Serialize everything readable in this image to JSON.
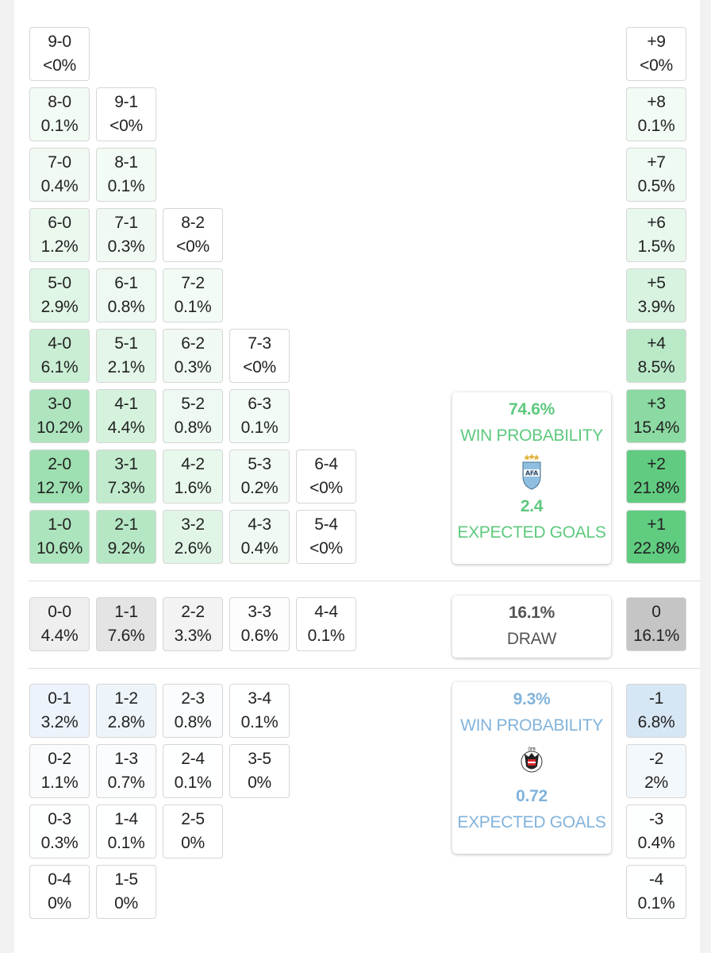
{
  "chart_data": {
    "type": "table",
    "home": {
      "win_probability": "74.6%",
      "win_label": "WIN PROBABILITY",
      "expected_goals": "2.4",
      "xg_label": "EXPECTED GOALS",
      "crest_icon": "afa-crest-icon",
      "color": "#5ec97e"
    },
    "away": {
      "win_probability": "9.3%",
      "win_label": "WIN PROBABILITY",
      "expected_goals": "0.72",
      "xg_label": "EXPECTED GOALS",
      "crest_icon": "ofb-crest-icon",
      "color": "#82b3db"
    },
    "draw": {
      "probability": "16.1%",
      "label": "DRAW"
    },
    "home_wins": [
      [
        "9-0",
        "<0%",
        "8-0",
        "0.1%",
        "9-1",
        "<0%"
      ],
      []
    ],
    "home_win_columns": [
      [
        {
          "score": "1-0",
          "prob": "10.6%",
          "p": 10.6
        },
        {
          "score": "2-0",
          "prob": "12.7%",
          "p": 12.7
        },
        {
          "score": "3-0",
          "prob": "10.2%",
          "p": 10.2
        },
        {
          "score": "4-0",
          "prob": "6.1%",
          "p": 6.1
        },
        {
          "score": "5-0",
          "prob": "2.9%",
          "p": 2.9
        },
        {
          "score": "6-0",
          "prob": "1.2%",
          "p": 1.2
        },
        {
          "score": "7-0",
          "prob": "0.4%",
          "p": 0.4
        },
        {
          "score": "8-0",
          "prob": "0.1%",
          "p": 0.1
        },
        {
          "score": "9-0",
          "prob": "<0%",
          "p": 0
        }
      ],
      [
        {
          "score": "2-1",
          "prob": "9.2%",
          "p": 9.2
        },
        {
          "score": "3-1",
          "prob": "7.3%",
          "p": 7.3
        },
        {
          "score": "4-1",
          "prob": "4.4%",
          "p": 4.4
        },
        {
          "score": "5-1",
          "prob": "2.1%",
          "p": 2.1
        },
        {
          "score": "6-1",
          "prob": "0.8%",
          "p": 0.8
        },
        {
          "score": "7-1",
          "prob": "0.3%",
          "p": 0.3
        },
        {
          "score": "8-1",
          "prob": "0.1%",
          "p": 0.1
        },
        {
          "score": "9-1",
          "prob": "<0%",
          "p": 0
        }
      ],
      [
        {
          "score": "3-2",
          "prob": "2.6%",
          "p": 2.6
        },
        {
          "score": "4-2",
          "prob": "1.6%",
          "p": 1.6
        },
        {
          "score": "5-2",
          "prob": "0.8%",
          "p": 0.8
        },
        {
          "score": "6-2",
          "prob": "0.3%",
          "p": 0.3
        },
        {
          "score": "7-2",
          "prob": "0.1%",
          "p": 0.1
        },
        {
          "score": "8-2",
          "prob": "<0%",
          "p": 0
        }
      ],
      [
        {
          "score": "4-3",
          "prob": "0.4%",
          "p": 0.4
        },
        {
          "score": "5-3",
          "prob": "0.2%",
          "p": 0.2
        },
        {
          "score": "6-3",
          "prob": "0.1%",
          "p": 0.1
        },
        {
          "score": "7-3",
          "prob": "<0%",
          "p": 0
        }
      ],
      [
        {
          "score": "5-4",
          "prob": "<0%",
          "p": 0
        },
        {
          "score": "6-4",
          "prob": "<0%",
          "p": 0
        }
      ]
    ],
    "draws": [
      {
        "score": "0-0",
        "prob": "4.4%",
        "p": 4.4
      },
      {
        "score": "1-1",
        "prob": "7.6%",
        "p": 7.6
      },
      {
        "score": "2-2",
        "prob": "3.3%",
        "p": 3.3
      },
      {
        "score": "3-3",
        "prob": "0.6%",
        "p": 0.6
      },
      {
        "score": "4-4",
        "prob": "0.1%",
        "p": 0.1
      }
    ],
    "away_win_columns": [
      [
        {
          "score": "0-1",
          "prob": "3.2%",
          "p": 3.2
        },
        {
          "score": "0-2",
          "prob": "1.1%",
          "p": 1.1
        },
        {
          "score": "0-3",
          "prob": "0.3%",
          "p": 0.3
        },
        {
          "score": "0-4",
          "prob": "0%",
          "p": 0
        }
      ],
      [
        {
          "score": "1-2",
          "prob": "2.8%",
          "p": 2.8
        },
        {
          "score": "1-3",
          "prob": "0.7%",
          "p": 0.7
        },
        {
          "score": "1-4",
          "prob": "0.1%",
          "p": 0.1
        },
        {
          "score": "1-5",
          "prob": "0%",
          "p": 0
        }
      ],
      [
        {
          "score": "2-3",
          "prob": "0.8%",
          "p": 0.8
        },
        {
          "score": "2-4",
          "prob": "0.1%",
          "p": 0.1
        },
        {
          "score": "2-5",
          "prob": "0%",
          "p": 0
        }
      ],
      [
        {
          "score": "3-4",
          "prob": "0.1%",
          "p": 0.1
        },
        {
          "score": "3-5",
          "prob": "0%",
          "p": 0
        }
      ]
    ],
    "margins_home": [
      {
        "label": "+1",
        "prob": "22.8%",
        "p": 22.8
      },
      {
        "label": "+2",
        "prob": "21.8%",
        "p": 21.8
      },
      {
        "label": "+3",
        "prob": "15.4%",
        "p": 15.4
      },
      {
        "label": "+4",
        "prob": "8.5%",
        "p": 8.5
      },
      {
        "label": "+5",
        "prob": "3.9%",
        "p": 3.9
      },
      {
        "label": "+6",
        "prob": "1.5%",
        "p": 1.5
      },
      {
        "label": "+7",
        "prob": "0.5%",
        "p": 0.5
      },
      {
        "label": "+8",
        "prob": "0.1%",
        "p": 0.1
      },
      {
        "label": "+9",
        "prob": "<0%",
        "p": 0
      }
    ],
    "margin_draw": {
      "label": "0",
      "prob": "16.1%",
      "p": 16.1
    },
    "margins_away": [
      {
        "label": "-1",
        "prob": "6.8%",
        "p": 6.8
      },
      {
        "label": "-2",
        "prob": "2%",
        "p": 2
      },
      {
        "label": "-3",
        "prob": "0.4%",
        "p": 0.4
      },
      {
        "label": "-4",
        "prob": "0.1%",
        "p": 0.1
      }
    ]
  }
}
